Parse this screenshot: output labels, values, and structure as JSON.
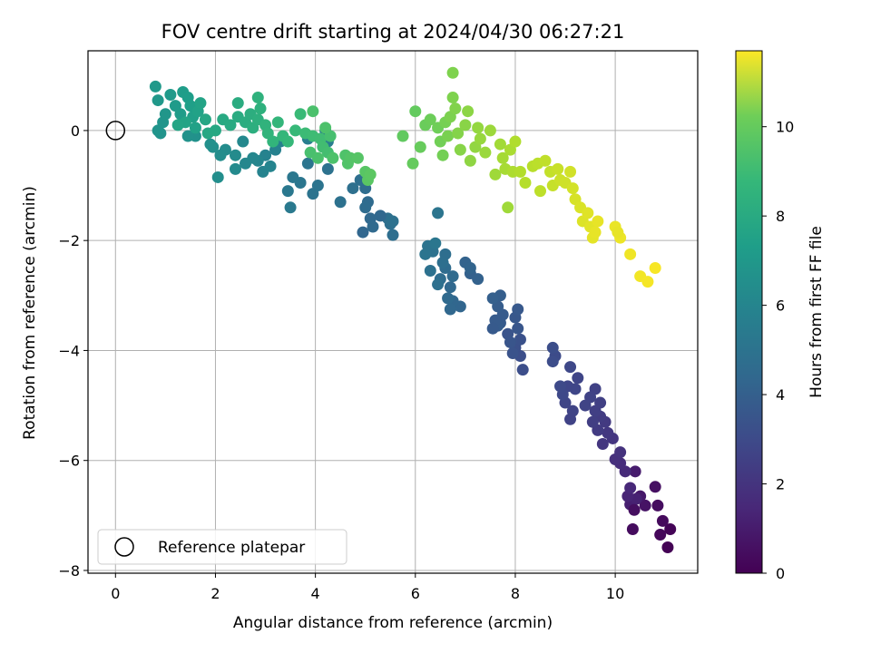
{
  "chart_data": {
    "type": "scatter",
    "title": "FOV centre drift starting at 2024/04/30 06:27:21",
    "xlabel": "Angular distance from reference (arcmin)",
    "ylabel": "Rotation from reference (arcmin)",
    "xlim": [
      -0.55,
      11.65
    ],
    "ylim": [
      -8.05,
      1.45
    ],
    "xticks": [
      0,
      2,
      4,
      6,
      8,
      10
    ],
    "yticks": [
      0,
      -2,
      -4,
      -6,
      -8
    ],
    "xtick_labels": [
      "0",
      "2",
      "4",
      "6",
      "8",
      "10"
    ],
    "ytick_labels": [
      "0",
      "−2",
      "−4",
      "−6",
      "−8"
    ],
    "grid": true,
    "colormap": "viridis",
    "colorbar": {
      "label": "Hours from first FF file",
      "range": [
        0,
        11.7
      ],
      "ticks": [
        0,
        2,
        4,
        6,
        8,
        10
      ],
      "tick_labels": [
        "0",
        "2",
        "4",
        "6",
        "8",
        "10"
      ]
    },
    "legend": {
      "placement": "lower-left",
      "entries": [
        "Reference platepar"
      ]
    },
    "reference_point": {
      "x": 0,
      "y": 0,
      "label": "Reference platepar"
    },
    "points": [
      {
        "x": 11.05,
        "y": -7.58,
        "h": 0.05
      },
      {
        "x": 11.1,
        "y": -7.25,
        "h": 0.1
      },
      {
        "x": 10.9,
        "y": -7.35,
        "h": 0.2
      },
      {
        "x": 10.95,
        "y": -7.1,
        "h": 0.3
      },
      {
        "x": 10.85,
        "y": -6.82,
        "h": 0.4
      },
      {
        "x": 10.8,
        "y": -6.48,
        "h": 0.5
      },
      {
        "x": 10.6,
        "y": -6.82,
        "h": 0.6
      },
      {
        "x": 10.5,
        "y": -6.65,
        "h": 0.75
      },
      {
        "x": 10.4,
        "y": -6.2,
        "h": 0.9
      },
      {
        "x": 10.3,
        "y": -6.8,
        "h": 1.0
      },
      {
        "x": 10.42,
        "y": -6.7,
        "h": 1.1
      },
      {
        "x": 10.35,
        "y": -7.25,
        "h": 0.35
      },
      {
        "x": 10.38,
        "y": -6.9,
        "h": 0.45
      },
      {
        "x": 10.25,
        "y": -6.65,
        "h": 1.2
      },
      {
        "x": 10.3,
        "y": -6.5,
        "h": 1.3
      },
      {
        "x": 10.2,
        "y": -6.2,
        "h": 1.4
      },
      {
        "x": 10.1,
        "y": -6.05,
        "h": 1.5
      },
      {
        "x": 10.0,
        "y": -5.98,
        "h": 1.6
      },
      {
        "x": 10.1,
        "y": -5.85,
        "h": 1.7
      },
      {
        "x": 9.95,
        "y": -5.6,
        "h": 1.8
      },
      {
        "x": 9.85,
        "y": -5.5,
        "h": 1.9
      },
      {
        "x": 9.75,
        "y": -5.7,
        "h": 1.85
      },
      {
        "x": 9.8,
        "y": -5.3,
        "h": 2.0
      },
      {
        "x": 9.7,
        "y": -5.2,
        "h": 2.1
      },
      {
        "x": 9.65,
        "y": -5.45,
        "h": 2.05
      },
      {
        "x": 9.6,
        "y": -5.1,
        "h": 2.2
      },
      {
        "x": 9.55,
        "y": -5.3,
        "h": 2.15
      },
      {
        "x": 9.7,
        "y": -4.95,
        "h": 2.25
      },
      {
        "x": 9.6,
        "y": -4.7,
        "h": 2.3
      },
      {
        "x": 9.5,
        "y": -4.85,
        "h": 2.35
      },
      {
        "x": 9.4,
        "y": -5.0,
        "h": 2.4
      },
      {
        "x": 9.25,
        "y": -4.5,
        "h": 2.45
      },
      {
        "x": 9.2,
        "y": -4.7,
        "h": 2.5
      },
      {
        "x": 9.1,
        "y": -4.3,
        "h": 2.55
      },
      {
        "x": 9.05,
        "y": -4.65,
        "h": 2.5
      },
      {
        "x": 9.0,
        "y": -4.95,
        "h": 2.45
      },
      {
        "x": 9.15,
        "y": -5.1,
        "h": 2.4
      },
      {
        "x": 9.1,
        "y": -5.25,
        "h": 2.35
      },
      {
        "x": 8.95,
        "y": -4.8,
        "h": 2.6
      },
      {
        "x": 8.9,
        "y": -4.65,
        "h": 2.65
      },
      {
        "x": 8.8,
        "y": -4.1,
        "h": 2.7
      },
      {
        "x": 8.75,
        "y": -4.2,
        "h": 2.75
      },
      {
        "x": 8.75,
        "y": -3.95,
        "h": 2.8
      },
      {
        "x": 8.15,
        "y": -4.35,
        "h": 2.8
      },
      {
        "x": 8.1,
        "y": -4.1,
        "h": 2.85
      },
      {
        "x": 8.0,
        "y": -3.95,
        "h": 2.9
      },
      {
        "x": 8.1,
        "y": -3.8,
        "h": 2.95
      },
      {
        "x": 7.95,
        "y": -4.05,
        "h": 3.0
      },
      {
        "x": 7.85,
        "y": -3.7,
        "h": 3.05
      },
      {
        "x": 7.9,
        "y": -3.85,
        "h": 3.1
      },
      {
        "x": 8.05,
        "y": -3.6,
        "h": 3.15
      },
      {
        "x": 8.0,
        "y": -3.4,
        "h": 3.2
      },
      {
        "x": 8.05,
        "y": -3.25,
        "h": 3.25
      },
      {
        "x": 7.7,
        "y": -3.5,
        "h": 3.3
      },
      {
        "x": 7.75,
        "y": -3.35,
        "h": 3.35
      },
      {
        "x": 7.65,
        "y": -3.55,
        "h": 3.4
      },
      {
        "x": 7.6,
        "y": -3.45,
        "h": 3.35
      },
      {
        "x": 7.55,
        "y": -3.6,
        "h": 3.3
      },
      {
        "x": 7.65,
        "y": -3.2,
        "h": 3.45
      },
      {
        "x": 7.7,
        "y": -3.0,
        "h": 3.5
      },
      {
        "x": 7.55,
        "y": -3.05,
        "h": 3.55
      },
      {
        "x": 7.1,
        "y": -2.6,
        "h": 3.6
      },
      {
        "x": 7.25,
        "y": -2.7,
        "h": 3.65
      },
      {
        "x": 7.0,
        "y": -2.4,
        "h": 3.7
      },
      {
        "x": 7.1,
        "y": -2.5,
        "h": 3.75
      },
      {
        "x": 6.9,
        "y": -3.2,
        "h": 3.8
      },
      {
        "x": 6.75,
        "y": -3.1,
        "h": 3.85
      },
      {
        "x": 6.7,
        "y": -3.25,
        "h": 3.9
      },
      {
        "x": 6.7,
        "y": -2.85,
        "h": 3.95
      },
      {
        "x": 6.65,
        "y": -3.05,
        "h": 4.0
      },
      {
        "x": 6.75,
        "y": -2.65,
        "h": 4.05
      },
      {
        "x": 6.6,
        "y": -2.5,
        "h": 4.1
      },
      {
        "x": 6.5,
        "y": -2.7,
        "h": 4.15
      },
      {
        "x": 6.6,
        "y": -2.25,
        "h": 4.2
      },
      {
        "x": 6.55,
        "y": -2.4,
        "h": 4.25
      },
      {
        "x": 6.45,
        "y": -2.8,
        "h": 4.3
      },
      {
        "x": 6.3,
        "y": -2.55,
        "h": 4.35
      },
      {
        "x": 6.35,
        "y": -2.2,
        "h": 4.4
      },
      {
        "x": 6.25,
        "y": -2.1,
        "h": 4.45
      },
      {
        "x": 6.2,
        "y": -2.25,
        "h": 4.5
      },
      {
        "x": 6.45,
        "y": -1.5,
        "h": 4.55
      },
      {
        "x": 6.4,
        "y": -2.05,
        "h": 4.6
      },
      {
        "x": 5.55,
        "y": -1.9,
        "h": 4.2
      },
      {
        "x": 5.5,
        "y": -1.7,
        "h": 4.25
      },
      {
        "x": 5.45,
        "y": -1.6,
        "h": 4.3
      },
      {
        "x": 5.55,
        "y": -1.65,
        "h": 4.35
      },
      {
        "x": 5.3,
        "y": -1.55,
        "h": 3.9
      },
      {
        "x": 5.1,
        "y": -1.6,
        "h": 3.95
      },
      {
        "x": 5.15,
        "y": -1.75,
        "h": 4.0
      },
      {
        "x": 5.05,
        "y": -1.3,
        "h": 4.05
      },
      {
        "x": 5.0,
        "y": -1.4,
        "h": 4.1
      },
      {
        "x": 4.95,
        "y": -1.85,
        "h": 3.85
      },
      {
        "x": 5.0,
        "y": -1.05,
        "h": 4.15
      },
      {
        "x": 5.05,
        "y": -0.85,
        "h": 4.2
      },
      {
        "x": 4.9,
        "y": -0.9,
        "h": 4.25
      },
      {
        "x": 4.75,
        "y": -1.05,
        "h": 4.3
      },
      {
        "x": 4.5,
        "y": -1.3,
        "h": 4.35
      },
      {
        "x": 4.25,
        "y": -0.7,
        "h": 4.4
      },
      {
        "x": 3.95,
        "y": -1.15,
        "h": 4.45
      },
      {
        "x": 4.05,
        "y": -1.0,
        "h": 4.5
      },
      {
        "x": 3.85,
        "y": -0.6,
        "h": 4.55
      },
      {
        "x": 3.7,
        "y": -0.95,
        "h": 4.6
      },
      {
        "x": 3.55,
        "y": -0.85,
        "h": 4.65
      },
      {
        "x": 3.45,
        "y": -1.1,
        "h": 4.7
      },
      {
        "x": 3.5,
        "y": -1.4,
        "h": 4.75
      },
      {
        "x": 3.85,
        "y": -0.15,
        "h": 5.0
      },
      {
        "x": 4.2,
        "y": 0.0,
        "h": 4.9
      },
      {
        "x": 4.25,
        "y": -0.2,
        "h": 4.95
      },
      {
        "x": 3.3,
        "y": -0.2,
        "h": 5.1
      },
      {
        "x": 3.2,
        "y": -0.35,
        "h": 5.15
      },
      {
        "x": 3.0,
        "y": -0.45,
        "h": 5.2
      },
      {
        "x": 2.95,
        "y": -0.75,
        "h": 5.25
      },
      {
        "x": 3.1,
        "y": -0.65,
        "h": 5.3
      },
      {
        "x": 2.85,
        "y": -0.55,
        "h": 5.35
      },
      {
        "x": 2.75,
        "y": -0.5,
        "h": 5.4
      },
      {
        "x": 2.6,
        "y": -0.6,
        "h": 5.45
      },
      {
        "x": 2.55,
        "y": -0.2,
        "h": 5.5
      },
      {
        "x": 2.4,
        "y": -0.7,
        "h": 5.55
      },
      {
        "x": 2.4,
        "y": -0.45,
        "h": 5.6
      },
      {
        "x": 2.2,
        "y": -0.35,
        "h": 5.65
      },
      {
        "x": 2.1,
        "y": -0.45,
        "h": 5.7
      },
      {
        "x": 2.05,
        "y": -0.85,
        "h": 5.75
      },
      {
        "x": 1.95,
        "y": -0.3,
        "h": 5.8
      },
      {
        "x": 1.9,
        "y": -0.25,
        "h": 5.85
      },
      {
        "x": 1.6,
        "y": -0.1,
        "h": 5.9
      },
      {
        "x": 1.45,
        "y": -0.1,
        "h": 5.95
      },
      {
        "x": 0.9,
        "y": -0.05,
        "h": 6.0
      },
      {
        "x": 0.85,
        "y": 0.0,
        "h": 6.05
      },
      {
        "x": 0.95,
        "y": 0.15,
        "h": 6.1
      },
      {
        "x": 1.0,
        "y": 0.3,
        "h": 6.15
      },
      {
        "x": 0.85,
        "y": 0.55,
        "h": 6.2
      },
      {
        "x": 0.8,
        "y": 0.8,
        "h": 6.25
      },
      {
        "x": 1.1,
        "y": 0.65,
        "h": 6.3
      },
      {
        "x": 1.2,
        "y": 0.45,
        "h": 6.35
      },
      {
        "x": 1.3,
        "y": 0.3,
        "h": 6.4
      },
      {
        "x": 1.35,
        "y": 0.7,
        "h": 6.45
      },
      {
        "x": 1.45,
        "y": 0.6,
        "h": 6.5
      },
      {
        "x": 1.5,
        "y": 0.45,
        "h": 6.55
      },
      {
        "x": 1.55,
        "y": 0.25,
        "h": 6.6
      },
      {
        "x": 1.6,
        "y": 0.05,
        "h": 6.65
      },
      {
        "x": 1.65,
        "y": 0.35,
        "h": 6.7
      },
      {
        "x": 1.7,
        "y": 0.5,
        "h": 6.75
      },
      {
        "x": 1.4,
        "y": 0.15,
        "h": 6.8
      },
      {
        "x": 1.25,
        "y": 0.1,
        "h": 6.85
      },
      {
        "x": 1.8,
        "y": 0.2,
        "h": 6.9
      },
      {
        "x": 1.85,
        "y": -0.05,
        "h": 6.95
      },
      {
        "x": 2.0,
        "y": 0.0,
        "h": 7.0
      },
      {
        "x": 2.15,
        "y": 0.2,
        "h": 7.05
      },
      {
        "x": 2.3,
        "y": 0.1,
        "h": 7.1
      },
      {
        "x": 2.45,
        "y": 0.25,
        "h": 7.15
      },
      {
        "x": 2.45,
        "y": 0.5,
        "h": 7.2
      },
      {
        "x": 2.6,
        "y": 0.15,
        "h": 7.25
      },
      {
        "x": 2.7,
        "y": 0.3,
        "h": 7.3
      },
      {
        "x": 2.75,
        "y": 0.05,
        "h": 7.35
      },
      {
        "x": 2.85,
        "y": 0.2,
        "h": 7.4
      },
      {
        "x": 2.9,
        "y": 0.4,
        "h": 7.45
      },
      {
        "x": 2.85,
        "y": 0.6,
        "h": 7.5
      },
      {
        "x": 3.0,
        "y": 0.1,
        "h": 7.55
      },
      {
        "x": 3.05,
        "y": -0.05,
        "h": 7.6
      },
      {
        "x": 3.15,
        "y": -0.2,
        "h": 7.65
      },
      {
        "x": 3.25,
        "y": 0.15,
        "h": 7.7
      },
      {
        "x": 3.35,
        "y": -0.1,
        "h": 7.75
      },
      {
        "x": 3.45,
        "y": -0.2,
        "h": 7.8
      },
      {
        "x": 3.6,
        "y": 0.0,
        "h": 7.85
      },
      {
        "x": 3.7,
        "y": 0.3,
        "h": 7.9
      },
      {
        "x": 3.8,
        "y": -0.05,
        "h": 7.95
      },
      {
        "x": 3.95,
        "y": -0.1,
        "h": 8.0
      },
      {
        "x": 4.1,
        "y": -0.15,
        "h": 8.05
      },
      {
        "x": 4.15,
        "y": -0.3,
        "h": 8.1
      },
      {
        "x": 4.25,
        "y": -0.4,
        "h": 8.15
      },
      {
        "x": 4.3,
        "y": -0.1,
        "h": 8.2
      },
      {
        "x": 3.9,
        "y": -0.4,
        "h": 8.25
      },
      {
        "x": 4.05,
        "y": -0.5,
        "h": 8.3
      },
      {
        "x": 4.35,
        "y": -0.5,
        "h": 8.35
      },
      {
        "x": 4.6,
        "y": -0.45,
        "h": 8.4
      },
      {
        "x": 4.65,
        "y": -0.6,
        "h": 8.45
      },
      {
        "x": 4.7,
        "y": -0.5,
        "h": 8.5
      },
      {
        "x": 4.85,
        "y": -0.5,
        "h": 8.55
      },
      {
        "x": 5.0,
        "y": -0.75,
        "h": 8.6
      },
      {
        "x": 5.05,
        "y": -0.9,
        "h": 8.65
      },
      {
        "x": 5.1,
        "y": -0.8,
        "h": 8.7
      },
      {
        "x": 3.95,
        "y": 0.35,
        "h": 8.3
      },
      {
        "x": 4.2,
        "y": 0.05,
        "h": 8.35
      },
      {
        "x": 5.75,
        "y": -0.1,
        "h": 8.8
      },
      {
        "x": 6.0,
        "y": 0.35,
        "h": 8.85
      },
      {
        "x": 5.95,
        "y": -0.6,
        "h": 8.9
      },
      {
        "x": 6.1,
        "y": -0.3,
        "h": 8.95
      },
      {
        "x": 6.2,
        "y": 0.1,
        "h": 9.0
      },
      {
        "x": 6.3,
        "y": 0.2,
        "h": 9.05
      },
      {
        "x": 6.45,
        "y": 0.05,
        "h": 9.1
      },
      {
        "x": 6.5,
        "y": -0.2,
        "h": 9.15
      },
      {
        "x": 6.55,
        "y": -0.45,
        "h": 9.2
      },
      {
        "x": 6.6,
        "y": 0.15,
        "h": 9.25
      },
      {
        "x": 6.65,
        "y": -0.1,
        "h": 9.3
      },
      {
        "x": 6.7,
        "y": 0.25,
        "h": 9.35
      },
      {
        "x": 6.75,
        "y": 0.6,
        "h": 9.4
      },
      {
        "x": 6.8,
        "y": 0.4,
        "h": 9.45
      },
      {
        "x": 6.85,
        "y": -0.05,
        "h": 9.5
      },
      {
        "x": 6.9,
        "y": -0.35,
        "h": 9.55
      },
      {
        "x": 7.0,
        "y": 0.1,
        "h": 9.6
      },
      {
        "x": 7.05,
        "y": 0.35,
        "h": 9.65
      },
      {
        "x": 7.1,
        "y": -0.55,
        "h": 9.7
      },
      {
        "x": 7.2,
        "y": -0.3,
        "h": 9.75
      },
      {
        "x": 7.25,
        "y": 0.05,
        "h": 9.8
      },
      {
        "x": 7.3,
        "y": -0.15,
        "h": 9.85
      },
      {
        "x": 7.4,
        "y": -0.4,
        "h": 9.9
      },
      {
        "x": 7.5,
        "y": 0.0,
        "h": 9.95
      },
      {
        "x": 7.6,
        "y": -0.8,
        "h": 10.0
      },
      {
        "x": 7.7,
        "y": -0.25,
        "h": 10.05
      },
      {
        "x": 7.75,
        "y": -0.5,
        "h": 10.1
      },
      {
        "x": 7.8,
        "y": -0.7,
        "h": 10.15
      },
      {
        "x": 7.9,
        "y": -0.35,
        "h": 10.2
      },
      {
        "x": 7.95,
        "y": -0.75,
        "h": 10.25
      },
      {
        "x": 8.0,
        "y": -0.2,
        "h": 10.3
      },
      {
        "x": 8.1,
        "y": -0.75,
        "h": 10.35
      },
      {
        "x": 8.2,
        "y": -0.95,
        "h": 10.4
      },
      {
        "x": 8.35,
        "y": -0.65,
        "h": 10.45
      },
      {
        "x": 8.45,
        "y": -0.6,
        "h": 10.5
      },
      {
        "x": 8.5,
        "y": -1.1,
        "h": 10.55
      },
      {
        "x": 8.6,
        "y": -0.55,
        "h": 10.6
      },
      {
        "x": 8.7,
        "y": -0.75,
        "h": 10.65
      },
      {
        "x": 8.75,
        "y": -1.0,
        "h": 10.7
      },
      {
        "x": 8.85,
        "y": -0.7,
        "h": 10.75
      },
      {
        "x": 8.9,
        "y": -0.9,
        "h": 10.8
      },
      {
        "x": 9.0,
        "y": -0.95,
        "h": 10.85
      },
      {
        "x": 9.1,
        "y": -0.75,
        "h": 10.9
      },
      {
        "x": 9.15,
        "y": -1.05,
        "h": 10.95
      },
      {
        "x": 9.2,
        "y": -1.25,
        "h": 11.0
      },
      {
        "x": 9.3,
        "y": -1.4,
        "h": 11.05
      },
      {
        "x": 9.35,
        "y": -1.65,
        "h": 11.1
      },
      {
        "x": 9.45,
        "y": -1.5,
        "h": 11.15
      },
      {
        "x": 9.5,
        "y": -1.75,
        "h": 11.2
      },
      {
        "x": 9.55,
        "y": -1.95,
        "h": 11.25
      },
      {
        "x": 9.65,
        "y": -1.65,
        "h": 11.3
      },
      {
        "x": 9.6,
        "y": -1.85,
        "h": 11.3
      },
      {
        "x": 10.0,
        "y": -1.75,
        "h": 11.35
      },
      {
        "x": 10.1,
        "y": -1.95,
        "h": 11.4
      },
      {
        "x": 10.3,
        "y": -2.25,
        "h": 11.45
      },
      {
        "x": 10.5,
        "y": -2.65,
        "h": 11.5
      },
      {
        "x": 10.65,
        "y": -2.75,
        "h": 11.55
      },
      {
        "x": 10.8,
        "y": -2.5,
        "h": 11.6
      },
      {
        "x": 6.75,
        "y": 1.05,
        "h": 9.4
      },
      {
        "x": 7.85,
        "y": -1.4,
        "h": 10.0
      },
      {
        "x": 10.05,
        "y": -1.85,
        "h": 11.3
      }
    ]
  }
}
